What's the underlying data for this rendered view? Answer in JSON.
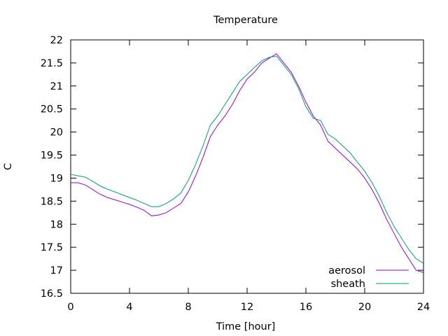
{
  "chart_data": {
    "type": "line",
    "title": "Temperature",
    "xlabel": "Time [hour]",
    "ylabel": "C",
    "xlim": [
      0,
      24
    ],
    "ylim": [
      16.5,
      22
    ],
    "xticks": [
      0,
      4,
      8,
      12,
      16,
      20,
      24
    ],
    "yticks": [
      16.5,
      17,
      17.5,
      18,
      18.5,
      19,
      19.5,
      20,
      20.5,
      21,
      21.5,
      22
    ],
    "grid": false,
    "legend_position": "bottom-right",
    "series": [
      {
        "name": "aerosol",
        "color": "#9400d3",
        "x": [
          0,
          0.5,
          1,
          1.5,
          2,
          2.5,
          3,
          3.5,
          4,
          4.5,
          5,
          5.5,
          6,
          6.5,
          7,
          7.5,
          8,
          8.5,
          9,
          9.5,
          10,
          10.5,
          11,
          11.5,
          12,
          12.5,
          13,
          13.5,
          14,
          14.5,
          15,
          15.5,
          16,
          16.5,
          17,
          17.5,
          18,
          18.5,
          19,
          19.5,
          20,
          20.5,
          21,
          21.5,
          22,
          22.5,
          23,
          23.5,
          24
        ],
        "y": [
          18.9,
          18.9,
          18.85,
          18.75,
          18.65,
          18.58,
          18.53,
          18.48,
          18.43,
          18.37,
          18.3,
          18.18,
          18.2,
          18.25,
          18.35,
          18.45,
          18.7,
          19.05,
          19.45,
          19.9,
          20.15,
          20.35,
          20.6,
          20.9,
          21.15,
          21.3,
          21.5,
          21.6,
          21.7,
          21.5,
          21.3,
          21.0,
          20.65,
          20.35,
          20.15,
          19.8,
          19.65,
          19.5,
          19.35,
          19.2,
          19.0,
          18.75,
          18.45,
          18.1,
          17.8,
          17.5,
          17.25,
          17.0,
          16.95
        ]
      },
      {
        "name": "sheath",
        "color": "#009e73",
        "x": [
          0,
          0.5,
          1,
          1.5,
          2,
          2.5,
          3,
          3.5,
          4,
          4.5,
          5,
          5.5,
          6,
          6.5,
          7,
          7.5,
          8,
          8.5,
          9,
          9.5,
          10,
          10.5,
          11,
          11.5,
          12,
          12.5,
          13,
          13.5,
          14,
          14.5,
          15,
          15.5,
          16,
          16.5,
          17,
          17.5,
          18,
          18.5,
          19,
          19.5,
          20,
          20.5,
          21,
          21.5,
          22,
          22.5,
          23,
          23.5,
          24
        ],
        "y": [
          19.08,
          19.05,
          19.02,
          18.93,
          18.83,
          18.76,
          18.7,
          18.64,
          18.58,
          18.52,
          18.45,
          18.38,
          18.38,
          18.45,
          18.55,
          18.68,
          18.95,
          19.3,
          19.7,
          20.15,
          20.35,
          20.6,
          20.85,
          21.1,
          21.25,
          21.4,
          21.55,
          21.62,
          21.65,
          21.45,
          21.25,
          20.95,
          20.55,
          20.3,
          20.25,
          19.95,
          19.85,
          19.7,
          19.55,
          19.35,
          19.15,
          18.9,
          18.6,
          18.25,
          17.95,
          17.7,
          17.45,
          17.25,
          17.15
        ]
      }
    ]
  }
}
